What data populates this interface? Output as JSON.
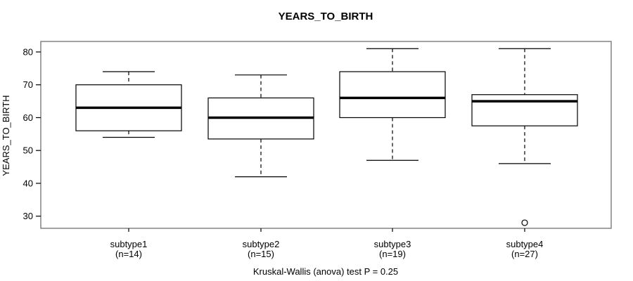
{
  "figure": {
    "title": "YEARS_TO_BIRTH",
    "y_axis_label": "YEARS_TO_BIRTH",
    "caption": "Kruskal-Wallis (anova) test P = 0.25"
  },
  "chart_data": {
    "type": "boxplot",
    "title": "YEARS_TO_BIRTH",
    "xlabel": "",
    "ylabel": "YEARS_TO_BIRTH",
    "caption": "Kruskal-Wallis (anova) test P = 0.25",
    "ylim": [
      26.3,
      83.2
    ],
    "yticks": [
      30,
      40,
      50,
      60,
      70,
      80
    ],
    "grid": false,
    "legend": false,
    "categories": [
      "subtype1",
      "subtype2",
      "subtype3",
      "subtype4"
    ],
    "category_sublabels": [
      "(n=14)",
      "(n=15)",
      "(n=19)",
      "(n=27)"
    ],
    "series": [
      {
        "name": "subtype1",
        "n": 14,
        "whisker_low": 54,
        "q1": 56,
        "median": 63,
        "q3": 70,
        "whisker_high": 74,
        "outliers": []
      },
      {
        "name": "subtype2",
        "n": 15,
        "whisker_low": 42,
        "q1": 53.5,
        "median": 60,
        "q3": 66,
        "whisker_high": 73,
        "outliers": []
      },
      {
        "name": "subtype3",
        "n": 19,
        "whisker_low": 47,
        "q1": 60,
        "median": 66,
        "q3": 74,
        "whisker_high": 81,
        "outliers": []
      },
      {
        "name": "subtype4",
        "n": 27,
        "whisker_low": 46,
        "q1": 57.5,
        "median": 65,
        "q3": 67,
        "whisker_high": 81,
        "outliers": [
          28
        ]
      }
    ],
    "colors": {
      "background": "#ffffff",
      "frame": "#707070",
      "box_border": "#000000",
      "median": "#000000",
      "whisker": "#000000",
      "text": "#000000"
    }
  }
}
